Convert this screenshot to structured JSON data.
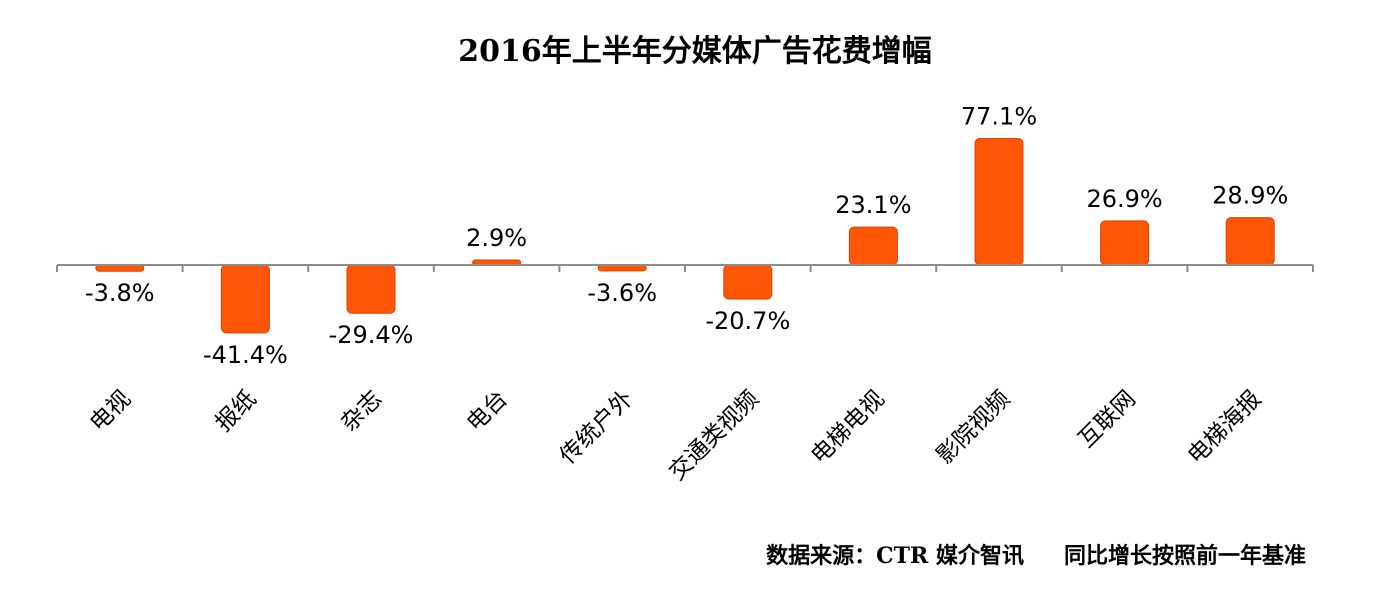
{
  "chart_data": {
    "type": "bar",
    "title": "2016年上半年分媒体广告花费增幅",
    "categories": [
      "电视",
      "报纸",
      "杂志",
      "电台",
      "传统户外",
      "交通类视频",
      "电梯电视",
      "影院视频",
      "互联网",
      "电梯海报"
    ],
    "values": [
      -3.8,
      -41.4,
      -29.4,
      2.9,
      -3.6,
      -20.7,
      23.1,
      77.1,
      26.9,
      28.9
    ],
    "data_labels": [
      "-3.8%",
      "-41.4%",
      "-29.4%",
      "2.9%",
      "-3.6%",
      "-20.7%",
      "23.1%",
      "77.1%",
      "26.9%",
      "28.9%"
    ],
    "xlabel": "",
    "ylabel": "",
    "unit": "%",
    "grid": false,
    "legend": "none",
    "colors": {
      "bar": "#FF5505",
      "bar_stroke": "#D94400",
      "axis": "#8C8C8C",
      "text": "#000000"
    }
  },
  "footer": {
    "source": "数据来源：CTR 媒介智讯",
    "note": "同比增长按照前一年基准"
  }
}
